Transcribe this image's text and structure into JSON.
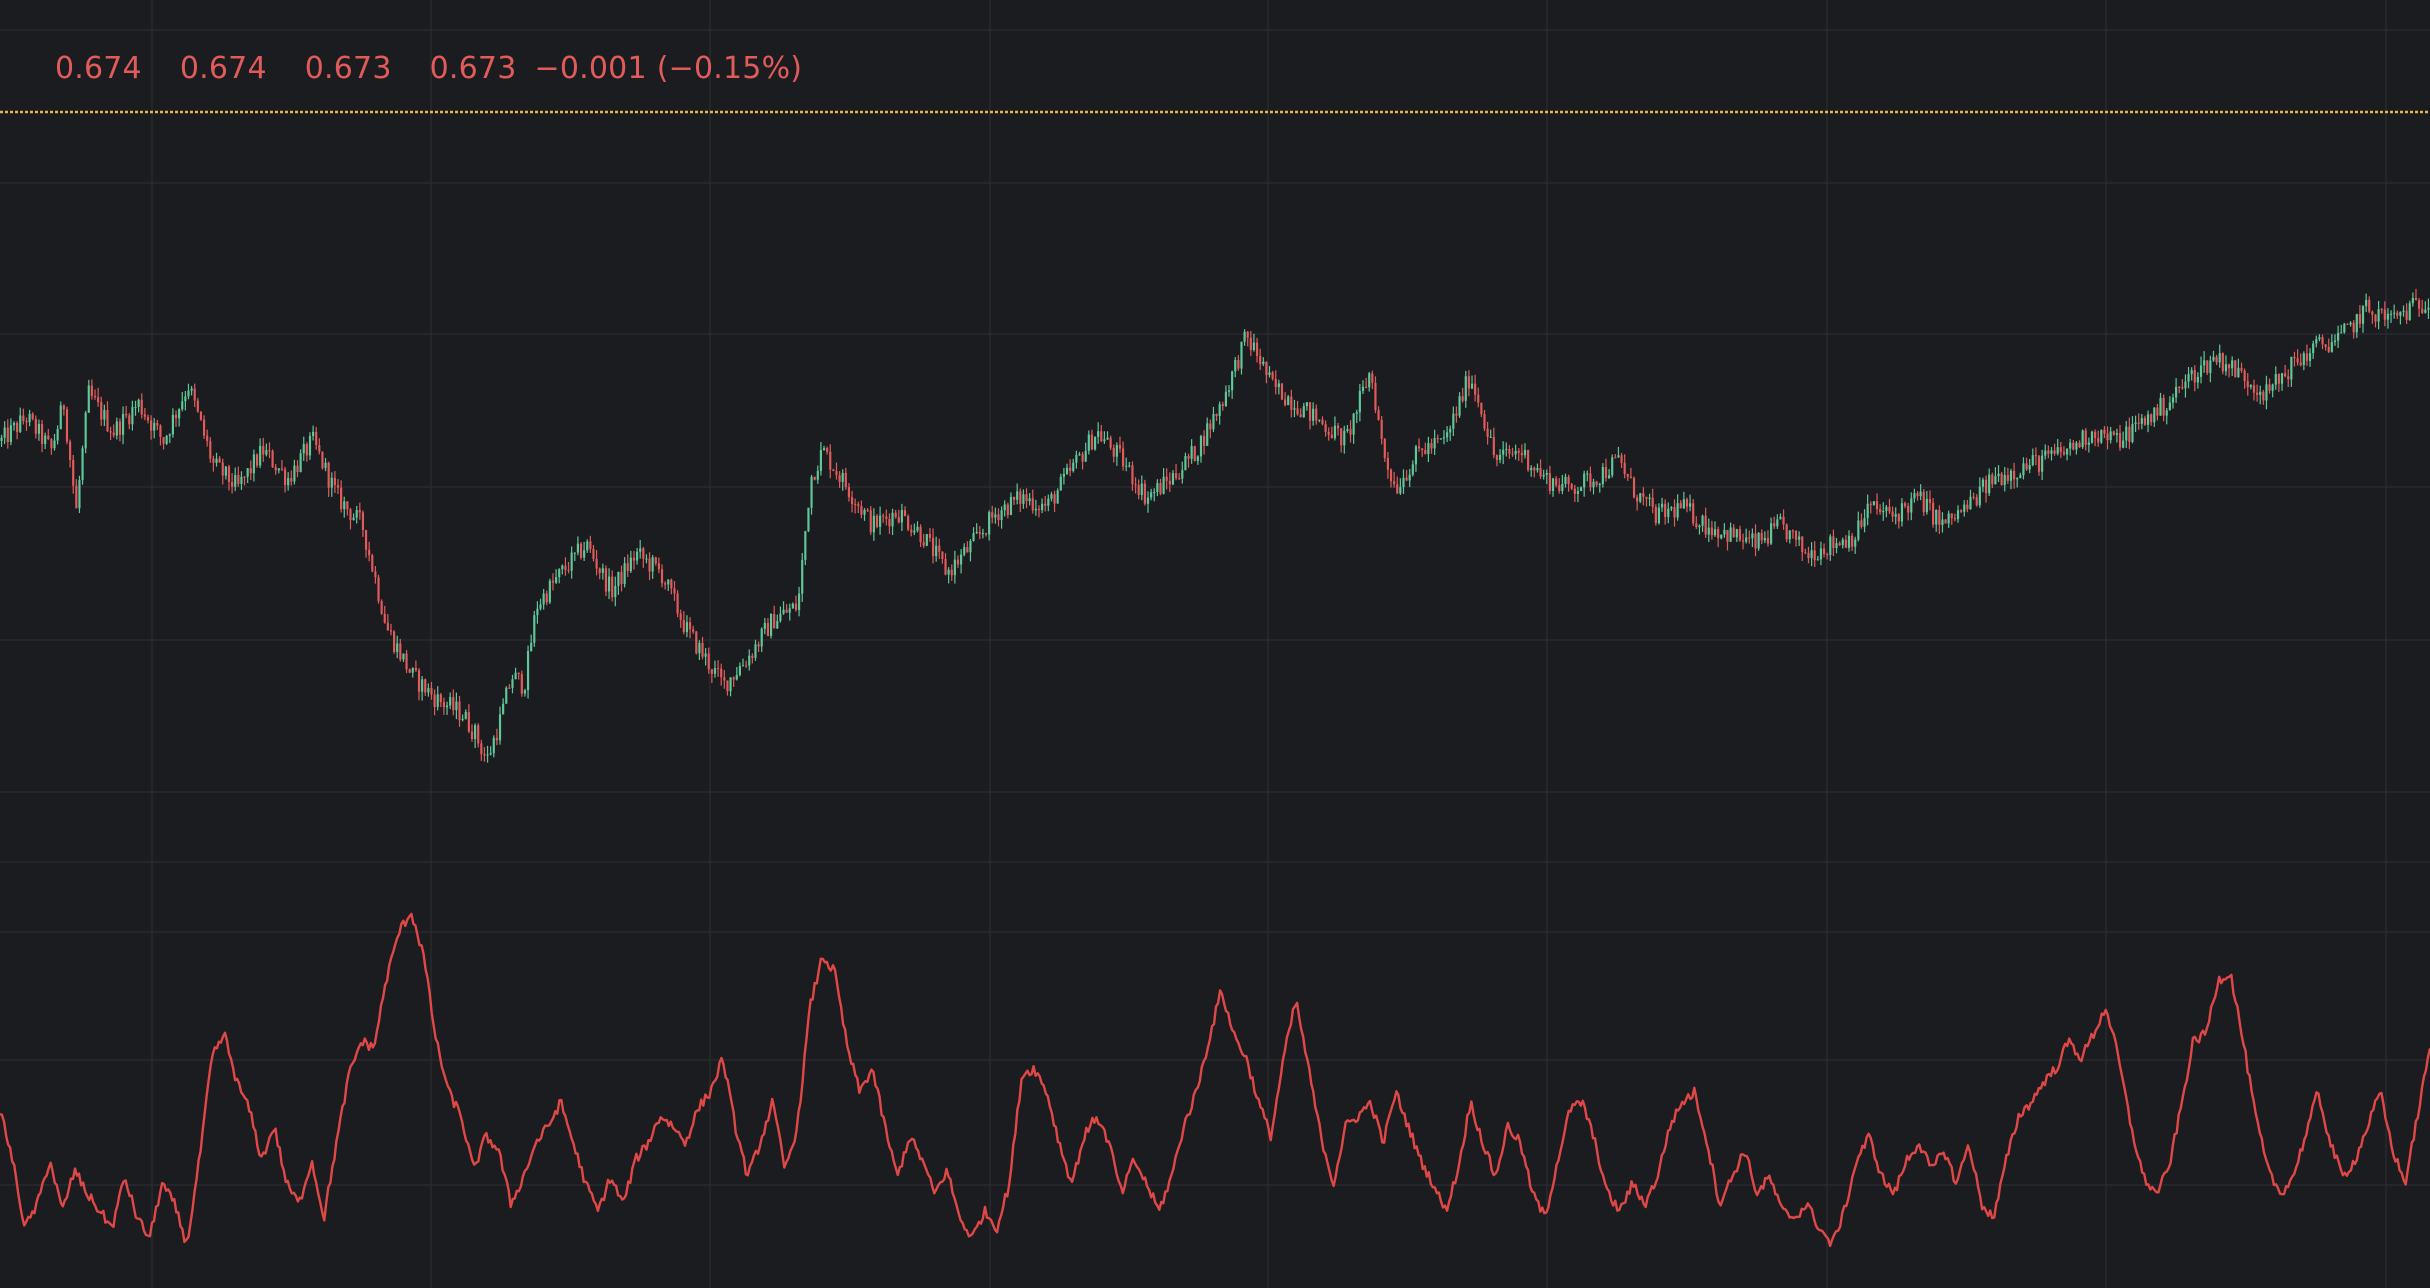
{
  "colors": {
    "background": "#1b1c1f",
    "grid": "#2a2d33",
    "up": "#5fc79a",
    "down": "#e25b5b",
    "price_line": "#e6b84a",
    "indicator": "#e04848",
    "legend_text": "#e25b5b"
  },
  "legend": {
    "open": "0.674",
    "high": "0.674",
    "low": "0.673",
    "close": "0.673",
    "change": "−0.001",
    "change_pct": "(−0.15%)"
  },
  "chart_data": [
    {
      "type": "candlestick",
      "name": "",
      "grid": true,
      "horizontal_reference_line": true,
      "close_path": [
        [
          0,
          0.7
        ],
        [
          2,
          0.75
        ],
        [
          4,
          0.68
        ],
        [
          5,
          0.78
        ],
        [
          6,
          0.55
        ],
        [
          7,
          0.8
        ],
        [
          9,
          0.72
        ],
        [
          11,
          0.78
        ],
        [
          13,
          0.7
        ],
        [
          15,
          0.82
        ],
        [
          17,
          0.65
        ],
        [
          19,
          0.6
        ],
        [
          21,
          0.68
        ],
        [
          23,
          0.62
        ],
        [
          25,
          0.7
        ],
        [
          27,
          0.58
        ],
        [
          29,
          0.52
        ],
        [
          31,
          0.3
        ],
        [
          33,
          0.2
        ],
        [
          35,
          0.15
        ],
        [
          37,
          0.12
        ],
        [
          38,
          0.08
        ],
        [
          39,
          0.02
        ],
        [
          40,
          0.1
        ],
        [
          41,
          0.2
        ],
        [
          42,
          0.18
        ],
        [
          43,
          0.35
        ],
        [
          45,
          0.42
        ],
        [
          47,
          0.48
        ],
        [
          49,
          0.38
        ],
        [
          51,
          0.46
        ],
        [
          53,
          0.42
        ],
        [
          55,
          0.3
        ],
        [
          57,
          0.22
        ],
        [
          58,
          0.18
        ],
        [
          60,
          0.24
        ],
        [
          62,
          0.32
        ],
        [
          64,
          0.35
        ],
        [
          65,
          0.62
        ],
        [
          66,
          0.68
        ],
        [
          68,
          0.6
        ],
        [
          70,
          0.52
        ],
        [
          72,
          0.55
        ],
        [
          74,
          0.5
        ],
        [
          76,
          0.42
        ],
        [
          78,
          0.48
        ],
        [
          80,
          0.55
        ],
        [
          82,
          0.58
        ],
        [
          84,
          0.56
        ],
        [
          86,
          0.64
        ],
        [
          88,
          0.72
        ],
        [
          90,
          0.66
        ],
        [
          92,
          0.58
        ],
        [
          94,
          0.62
        ],
        [
          96,
          0.68
        ],
        [
          98,
          0.78
        ],
        [
          99,
          0.85
        ],
        [
          100,
          0.92
        ],
        [
          101,
          0.88
        ],
        [
          102,
          0.82
        ],
        [
          104,
          0.78
        ],
        [
          106,
          0.74
        ],
        [
          108,
          0.7
        ],
        [
          110,
          0.85
        ],
        [
          111,
          0.68
        ],
        [
          112,
          0.6
        ],
        [
          114,
          0.68
        ],
        [
          116,
          0.7
        ],
        [
          118,
          0.84
        ],
        [
          119,
          0.76
        ],
        [
          120,
          0.66
        ],
        [
          122,
          0.68
        ],
        [
          124,
          0.62
        ],
        [
          126,
          0.6
        ],
        [
          128,
          0.62
        ],
        [
          130,
          0.66
        ],
        [
          131,
          0.6
        ],
        [
          133,
          0.54
        ],
        [
          135,
          0.56
        ],
        [
          137,
          0.52
        ],
        [
          139,
          0.5
        ],
        [
          141,
          0.48
        ],
        [
          143,
          0.52
        ],
        [
          145,
          0.46
        ],
        [
          147,
          0.48
        ],
        [
          149,
          0.5
        ],
        [
          150,
          0.56
        ],
        [
          152,
          0.54
        ],
        [
          154,
          0.58
        ],
        [
          156,
          0.52
        ],
        [
          158,
          0.56
        ],
        [
          160,
          0.62
        ],
        [
          162,
          0.64
        ],
        [
          164,
          0.66
        ],
        [
          166,
          0.68
        ],
        [
          168,
          0.72
        ],
        [
          170,
          0.7
        ],
        [
          172,
          0.74
        ],
        [
          174,
          0.78
        ],
        [
          176,
          0.84
        ],
        [
          178,
          0.88
        ],
        [
          180,
          0.84
        ],
        [
          182,
          0.8
        ],
        [
          184,
          0.86
        ],
        [
          186,
          0.9
        ],
        [
          188,
          0.92
        ],
        [
          190,
          0.98
        ],
        [
          192,
          0.96
        ],
        [
          195,
          1.0
        ]
      ]
    },
    {
      "type": "line",
      "name": "",
      "grid": true,
      "values_path": [
        [
          0,
          0.4
        ],
        [
          1,
          0.25
        ],
        [
          2,
          0.05
        ],
        [
          3,
          0.12
        ],
        [
          4,
          0.25
        ],
        [
          5,
          0.1
        ],
        [
          6,
          0.22
        ],
        [
          7,
          0.15
        ],
        [
          8,
          0.1
        ],
        [
          9,
          0.05
        ],
        [
          10,
          0.2
        ],
        [
          11,
          0.08
        ],
        [
          12,
          0.02
        ],
        [
          13,
          0.18
        ],
        [
          14,
          0.12
        ],
        [
          15,
          0.0
        ],
        [
          16,
          0.25
        ],
        [
          17,
          0.55
        ],
        [
          18,
          0.62
        ],
        [
          19,
          0.48
        ],
        [
          20,
          0.4
        ],
        [
          21,
          0.25
        ],
        [
          22,
          0.35
        ],
        [
          23,
          0.18
        ],
        [
          24,
          0.12
        ],
        [
          25,
          0.25
        ],
        [
          26,
          0.08
        ],
        [
          27,
          0.3
        ],
        [
          28,
          0.5
        ],
        [
          29,
          0.6
        ],
        [
          30,
          0.58
        ],
        [
          31,
          0.78
        ],
        [
          32,
          0.92
        ],
        [
          33,
          0.98
        ],
        [
          34,
          0.85
        ],
        [
          35,
          0.6
        ],
        [
          36,
          0.45
        ],
        [
          37,
          0.38
        ],
        [
          38,
          0.22
        ],
        [
          39,
          0.32
        ],
        [
          40,
          0.28
        ],
        [
          41,
          0.12
        ],
        [
          42,
          0.2
        ],
        [
          43,
          0.3
        ],
        [
          44,
          0.35
        ],
        [
          45,
          0.42
        ],
        [
          46,
          0.3
        ],
        [
          47,
          0.18
        ],
        [
          48,
          0.1
        ],
        [
          49,
          0.2
        ],
        [
          50,
          0.12
        ],
        [
          51,
          0.25
        ],
        [
          52,
          0.3
        ],
        [
          53,
          0.38
        ],
        [
          54,
          0.35
        ],
        [
          55,
          0.3
        ],
        [
          56,
          0.4
        ],
        [
          57,
          0.45
        ],
        [
          58,
          0.55
        ],
        [
          59,
          0.35
        ],
        [
          60,
          0.2
        ],
        [
          61,
          0.3
        ],
        [
          62,
          0.42
        ],
        [
          63,
          0.22
        ],
        [
          64,
          0.35
        ],
        [
          65,
          0.7
        ],
        [
          66,
          0.85
        ],
        [
          67,
          0.8
        ],
        [
          68,
          0.58
        ],
        [
          69,
          0.45
        ],
        [
          70,
          0.52
        ],
        [
          71,
          0.35
        ],
        [
          72,
          0.2
        ],
        [
          73,
          0.32
        ],
        [
          74,
          0.25
        ],
        [
          75,
          0.15
        ],
        [
          76,
          0.22
        ],
        [
          77,
          0.08
        ],
        [
          78,
          0.02
        ],
        [
          79,
          0.1
        ],
        [
          80,
          0.05
        ],
        [
          81,
          0.18
        ],
        [
          82,
          0.5
        ],
        [
          83,
          0.52
        ],
        [
          84,
          0.45
        ],
        [
          85,
          0.3
        ],
        [
          86,
          0.18
        ],
        [
          87,
          0.32
        ],
        [
          88,
          0.38
        ],
        [
          89,
          0.3
        ],
        [
          90,
          0.15
        ],
        [
          91,
          0.25
        ],
        [
          92,
          0.18
        ],
        [
          93,
          0.1
        ],
        [
          94,
          0.2
        ],
        [
          95,
          0.35
        ],
        [
          96,
          0.45
        ],
        [
          97,
          0.6
        ],
        [
          98,
          0.75
        ],
        [
          99,
          0.62
        ],
        [
          100,
          0.55
        ],
        [
          101,
          0.42
        ],
        [
          102,
          0.32
        ],
        [
          103,
          0.55
        ],
        [
          104,
          0.72
        ],
        [
          105,
          0.52
        ],
        [
          106,
          0.32
        ],
        [
          107,
          0.18
        ],
        [
          108,
          0.35
        ],
        [
          109,
          0.38
        ],
        [
          110,
          0.42
        ],
        [
          111,
          0.3
        ],
        [
          112,
          0.45
        ],
        [
          113,
          0.35
        ],
        [
          114,
          0.25
        ],
        [
          115,
          0.18
        ],
        [
          116,
          0.1
        ],
        [
          117,
          0.22
        ],
        [
          118,
          0.42
        ],
        [
          119,
          0.3
        ],
        [
          120,
          0.2
        ],
        [
          121,
          0.35
        ],
        [
          122,
          0.3
        ],
        [
          123,
          0.15
        ],
        [
          124,
          0.08
        ],
        [
          125,
          0.25
        ],
        [
          126,
          0.4
        ],
        [
          127,
          0.42
        ],
        [
          128,
          0.3
        ],
        [
          129,
          0.15
        ],
        [
          130,
          0.1
        ],
        [
          131,
          0.18
        ],
        [
          132,
          0.12
        ],
        [
          133,
          0.2
        ],
        [
          134,
          0.35
        ],
        [
          135,
          0.42
        ],
        [
          136,
          0.45
        ],
        [
          137,
          0.3
        ],
        [
          138,
          0.12
        ],
        [
          139,
          0.2
        ],
        [
          140,
          0.28
        ],
        [
          141,
          0.15
        ],
        [
          142,
          0.2
        ],
        [
          143,
          0.1
        ],
        [
          144,
          0.08
        ],
        [
          145,
          0.12
        ],
        [
          146,
          0.05
        ],
        [
          147,
          0.0
        ],
        [
          148,
          0.1
        ],
        [
          149,
          0.25
        ],
        [
          150,
          0.32
        ],
        [
          151,
          0.2
        ],
        [
          152,
          0.15
        ],
        [
          153,
          0.25
        ],
        [
          154,
          0.3
        ],
        [
          155,
          0.22
        ],
        [
          156,
          0.28
        ],
        [
          157,
          0.18
        ],
        [
          158,
          0.3
        ],
        [
          159,
          0.12
        ],
        [
          160,
          0.08
        ],
        [
          161,
          0.25
        ],
        [
          162,
          0.38
        ],
        [
          163,
          0.42
        ],
        [
          164,
          0.48
        ],
        [
          165,
          0.52
        ],
        [
          166,
          0.6
        ],
        [
          167,
          0.55
        ],
        [
          168,
          0.62
        ],
        [
          169,
          0.7
        ],
        [
          170,
          0.55
        ],
        [
          171,
          0.35
        ],
        [
          172,
          0.2
        ],
        [
          173,
          0.15
        ],
        [
          174,
          0.22
        ],
        [
          175,
          0.4
        ],
        [
          176,
          0.6
        ],
        [
          177,
          0.62
        ],
        [
          178,
          0.78
        ],
        [
          179,
          0.8
        ],
        [
          180,
          0.6
        ],
        [
          181,
          0.38
        ],
        [
          182,
          0.22
        ],
        [
          183,
          0.15
        ],
        [
          184,
          0.2
        ],
        [
          185,
          0.32
        ],
        [
          186,
          0.45
        ],
        [
          187,
          0.3
        ],
        [
          188,
          0.2
        ],
        [
          189,
          0.25
        ],
        [
          190,
          0.35
        ],
        [
          191,
          0.45
        ],
        [
          192,
          0.28
        ],
        [
          193,
          0.18
        ],
        [
          194,
          0.38
        ],
        [
          195,
          0.58
        ]
      ]
    }
  ]
}
